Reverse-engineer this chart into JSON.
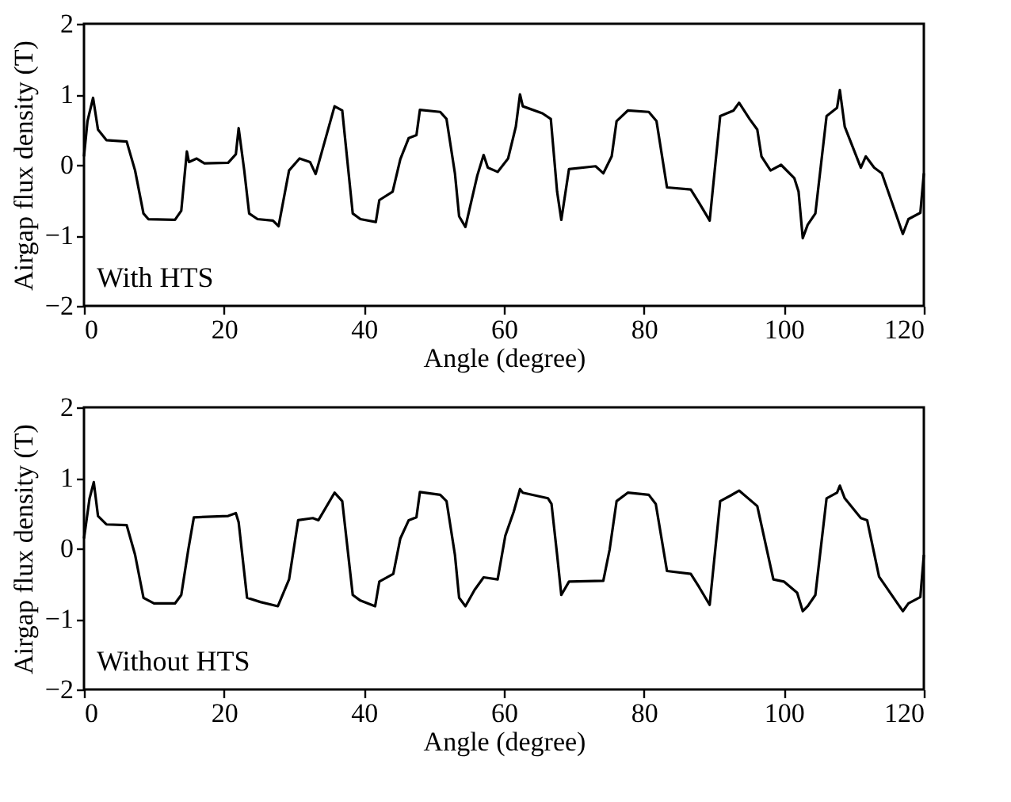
{
  "chart_data": [
    {
      "type": "line",
      "xlabel": "Angle (degree)",
      "ylabel": "Airgap flux density (T)",
      "annotations": [
        "With HTS"
      ],
      "xlim": [
        0,
        120
      ],
      "xticks": [
        0,
        20,
        40,
        60,
        80,
        100,
        120
      ],
      "ylim": [
        -2,
        2
      ],
      "yticks": [
        -2,
        -1,
        0,
        1,
        2
      ],
      "grid": false,
      "line_style": "solid",
      "marker": "none",
      "x": [
        0,
        0.5,
        1.3,
        2.0,
        3.2,
        6.1,
        7.3,
        8.5,
        9.2,
        13.0,
        13.9,
        14.7,
        15.0,
        16.1,
        17.2,
        20.6,
        21.7,
        22.1,
        22.9,
        23.6,
        24.8,
        27.0,
        27.8,
        29.3,
        30.8,
        32.3,
        33.1,
        35.8,
        36.9,
        38.4,
        39.5,
        41.7,
        42.2,
        44.1,
        45.2,
        46.4,
        47.5,
        48.0,
        50.9,
        51.8,
        53.0,
        53.6,
        54.5,
        56.2,
        57.1,
        57.7,
        59.1,
        60.6,
        61.7,
        62.3,
        62.7,
        65.5,
        66.7,
        67.6,
        68.2,
        69.3,
        73.1,
        74.2,
        75.4,
        76.1,
        77.7,
        80.7,
        81.8,
        83.3,
        86.7,
        87.9,
        89.4,
        90.9,
        92.8,
        93.6,
        95.1,
        96.2,
        96.8,
        98.1,
        99.6,
        101.5,
        102.1,
        102.7,
        103.4,
        104.5,
        106.1,
        107.6,
        108.0,
        108.7,
        111.0,
        111.7,
        112.9,
        114.0,
        117.0,
        117.8,
        119.5,
        120
      ],
      "series": [
        {
          "color": "#000000",
          "values": [
            0.12,
            0.62,
            0.95,
            0.5,
            0.35,
            0.33,
            -0.08,
            -0.69,
            -0.77,
            -0.78,
            -0.65,
            0.19,
            0.04,
            0.09,
            0.02,
            0.03,
            0.15,
            0.52,
            -0.08,
            -0.69,
            -0.77,
            -0.79,
            -0.87,
            -0.08,
            0.09,
            0.04,
            -0.13,
            0.83,
            0.77,
            -0.69,
            -0.77,
            -0.81,
            -0.5,
            -0.38,
            0.08,
            0.38,
            0.42,
            0.78,
            0.75,
            0.65,
            -0.12,
            -0.73,
            -0.88,
            -0.15,
            0.14,
            -0.04,
            -0.1,
            0.09,
            0.54,
            1.0,
            0.83,
            0.73,
            0.65,
            -0.38,
            -0.78,
            -0.06,
            -0.02,
            -0.12,
            0.12,
            0.62,
            0.77,
            0.75,
            0.62,
            -0.32,
            -0.35,
            -0.54,
            -0.79,
            0.69,
            0.77,
            0.88,
            0.65,
            0.5,
            0.12,
            -0.08,
            0,
            -0.19,
            -0.38,
            -1.04,
            -0.85,
            -0.69,
            0.69,
            0.81,
            1.06,
            0.54,
            -0.04,
            0.12,
            -0.04,
            -0.12,
            -0.98,
            -0.77,
            -0.68,
            -0.12
          ]
        }
      ]
    },
    {
      "type": "line",
      "xlabel": "Angle (degree)",
      "ylabel": "Airgap flux density (T)",
      "annotations": [
        "Without HTS"
      ],
      "xlim": [
        0,
        120
      ],
      "xticks": [
        0,
        20,
        40,
        60,
        80,
        100,
        120
      ],
      "ylim": [
        -2,
        2
      ],
      "yticks": [
        -2,
        -1,
        0,
        1,
        2
      ],
      "grid": false,
      "line_style": "solid",
      "marker": "none",
      "x": [
        0,
        0.8,
        1.4,
        2.0,
        3.2,
        6.1,
        7.3,
        8.5,
        10.0,
        13.0,
        13.9,
        14.9,
        15.7,
        20.6,
        21.7,
        22.1,
        23.3,
        25.2,
        27.7,
        29.3,
        30.6,
        32.7,
        33.5,
        35.8,
        36.9,
        38.4,
        39.5,
        41.6,
        42.2,
        44.2,
        45.2,
        46.4,
        47.5,
        48.0,
        50.9,
        51.8,
        53.0,
        53.6,
        54.5,
        55.8,
        57.1,
        59.1,
        60.2,
        61.4,
        62.3,
        62.7,
        66.3,
        66.8,
        67.6,
        68.2,
        69.3,
        74.2,
        75.1,
        76.1,
        77.7,
        80.7,
        81.7,
        83.3,
        86.7,
        87.9,
        89.4,
        90.9,
        92.4,
        93.6,
        96.2,
        98.5,
        100.0,
        101.9,
        102.7,
        103.4,
        104.5,
        106.1,
        107.6,
        108.0,
        108.7,
        111.0,
        111.9,
        113.6,
        117.0,
        117.8,
        119.5,
        120
      ],
      "series": [
        {
          "color": "#000000",
          "values": [
            0.14,
            0.71,
            0.94,
            0.46,
            0.34,
            0.33,
            -0.09,
            -0.7,
            -0.78,
            -0.78,
            -0.66,
            -0.02,
            0.44,
            0.46,
            0.5,
            0.37,
            -0.7,
            -0.76,
            -0.82,
            -0.44,
            0.4,
            0.43,
            0.4,
            0.79,
            0.67,
            -0.66,
            -0.74,
            -0.82,
            -0.47,
            -0.36,
            0.14,
            0.4,
            0.44,
            0.8,
            0.76,
            0.67,
            -0.09,
            -0.7,
            -0.82,
            -0.59,
            -0.41,
            -0.44,
            0.18,
            0.52,
            0.84,
            0.79,
            0.71,
            0.63,
            -0.09,
            -0.66,
            -0.47,
            -0.46,
            -0.02,
            0.67,
            0.79,
            0.76,
            0.63,
            -0.32,
            -0.36,
            -0.55,
            -0.8,
            0.67,
            0.75,
            0.82,
            0.6,
            -0.44,
            -0.47,
            -0.63,
            -0.89,
            -0.82,
            -0.66,
            0.71,
            0.79,
            0.89,
            0.71,
            0.43,
            0.4,
            -0.4,
            -0.89,
            -0.78,
            -0.69,
            -0.09
          ]
        }
      ]
    }
  ]
}
